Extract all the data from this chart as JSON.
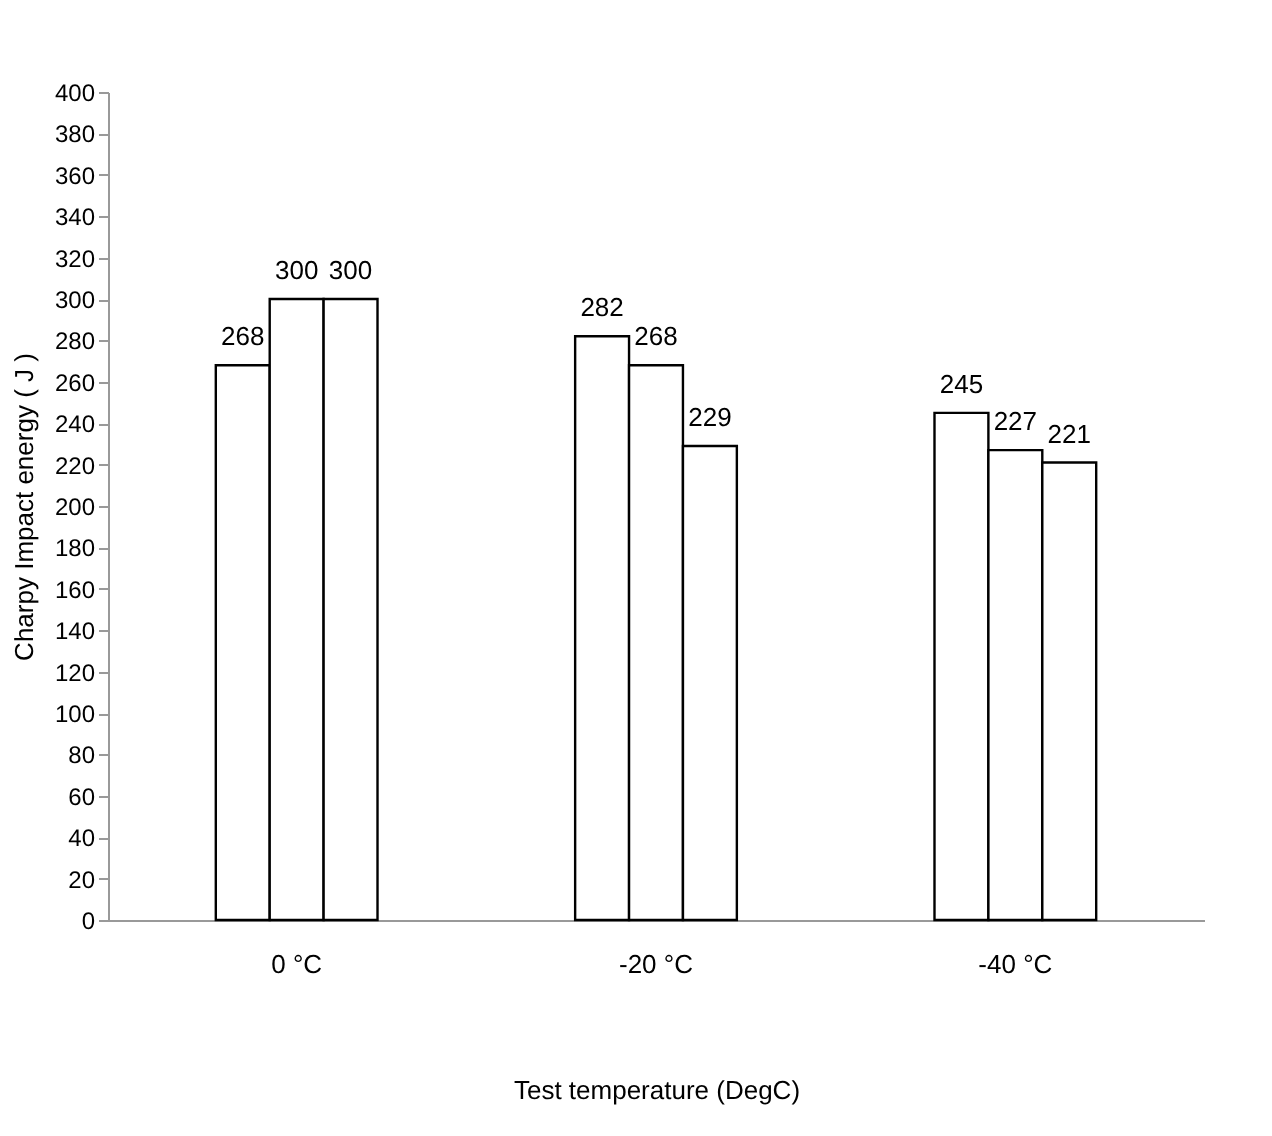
{
  "chart_data": {
    "type": "bar",
    "xlabel": "Test temperature (DegC)",
    "ylabel": "Charpy Impact energy ( J )",
    "categories": [
      "0 °C",
      "-20 °C",
      "-40 °C"
    ],
    "series": [
      {
        "color": "#ffffff",
        "values": [
          268,
          282,
          245
        ]
      },
      {
        "color": "#ffffff",
        "values": [
          300,
          268,
          227
        ]
      },
      {
        "color": "#ffffff",
        "values": [
          300,
          229,
          221
        ]
      }
    ],
    "ylim": [
      0,
      400
    ],
    "yticks": [
      0,
      20,
      40,
      60,
      80,
      100,
      120,
      140,
      160,
      180,
      200,
      220,
      240,
      260,
      280,
      300,
      320,
      340,
      360,
      380,
      400
    ],
    "data_labels": true
  }
}
